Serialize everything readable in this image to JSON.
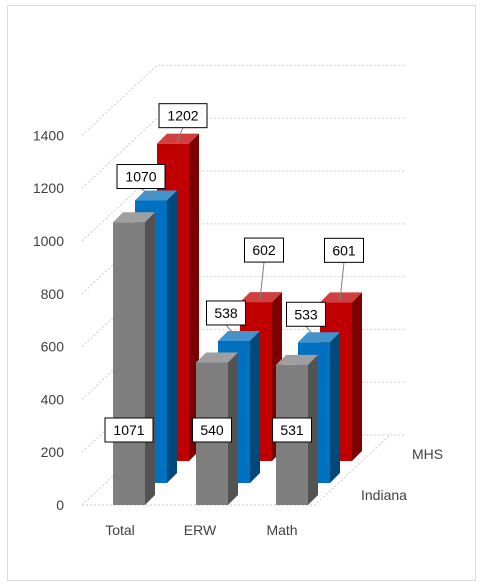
{
  "chart_data": {
    "type": "bar",
    "title": "",
    "xlabel": "",
    "ylabel": "",
    "ylim": [
      0,
      1400
    ],
    "yticks": [
      0,
      200,
      400,
      600,
      800,
      1000,
      1200,
      1400
    ],
    "yticks_text": [
      "0",
      "200",
      "400",
      "600",
      "800",
      "1000",
      "1200",
      "1400"
    ],
    "grid": true,
    "legend": "none",
    "categories": [
      "Total",
      "ERW",
      "Math"
    ],
    "depth_labels": [
      "Indiana",
      "MHS"
    ],
    "series": [
      {
        "values": [
          1071,
          540,
          531
        ],
        "labels": [
          "1071",
          "540",
          "531"
        ],
        "color": "#7f7f7f"
      },
      {
        "values": [
          1070,
          538,
          533
        ],
        "labels": [
          "1070",
          "538",
          "533"
        ],
        "color": "#0070c0"
      },
      {
        "values": [
          1202,
          602,
          601
        ],
        "labels": [
          "1202",
          "602",
          "601"
        ],
        "color": "#c00000"
      }
    ]
  }
}
